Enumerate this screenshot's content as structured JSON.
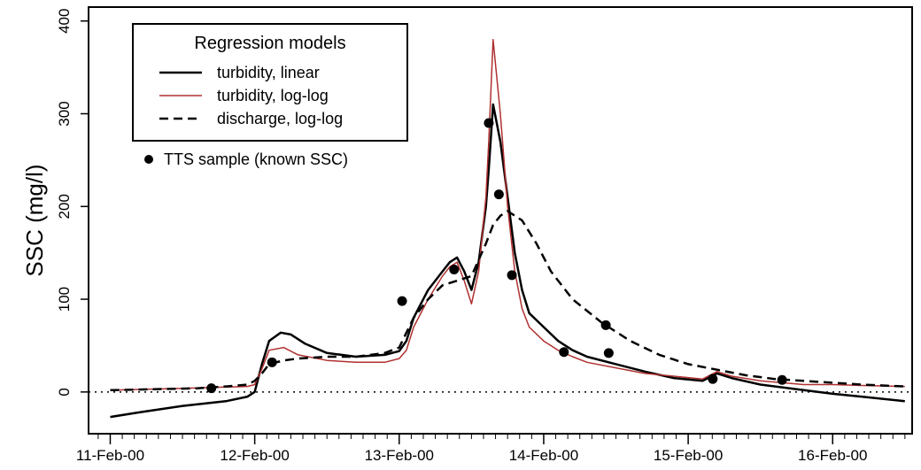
{
  "chart_data": {
    "type": "line",
    "title": "",
    "xlabel": "",
    "ylabel": "SSC (mg/l)",
    "x_ticklabels": [
      "11-Feb-00",
      "12-Feb-00",
      "13-Feb-00",
      "14-Feb-00",
      "15-Feb-00",
      "16-Feb-00"
    ],
    "x_tick_days": [
      11,
      12,
      13,
      14,
      15,
      16
    ],
    "xlim_days": [
      10.85,
      16.55
    ],
    "y_ticks": [
      0,
      100,
      200,
      300,
      400
    ],
    "ylim": [
      -45,
      415
    ],
    "legend": {
      "title": "Regression models",
      "position": "top-left",
      "entries": [
        "turbidity, linear",
        "turbidity, log-log",
        "discharge, log-log"
      ],
      "points_label": "TTS sample (known SSC)"
    },
    "reference_line": {
      "y": 0,
      "style": "dotted"
    },
    "colors": {
      "linear": "#000000",
      "loglog_turbidity": "#b03030",
      "discharge": "#000000",
      "points": "#000000"
    },
    "series": [
      {
        "name": "turbidity, linear",
        "style": "solid",
        "x": [
          11.0,
          11.2,
          11.5,
          11.8,
          11.95,
          12.0,
          12.05,
          12.1,
          12.18,
          12.25,
          12.35,
          12.5,
          12.7,
          12.9,
          13.0,
          13.05,
          13.1,
          13.2,
          13.3,
          13.35,
          13.4,
          13.45,
          13.5,
          13.55,
          13.6,
          13.62,
          13.65,
          13.7,
          13.75,
          13.8,
          13.85,
          13.9,
          14.0,
          14.1,
          14.2,
          14.3,
          14.5,
          14.7,
          14.9,
          15.1,
          15.2,
          15.3,
          15.5,
          15.8,
          16.0,
          16.2,
          16.5
        ],
        "y": [
          -27,
          -22,
          -15,
          -10,
          -5,
          0,
          30,
          55,
          64,
          62,
          52,
          42,
          38,
          40,
          44,
          55,
          80,
          110,
          130,
          140,
          145,
          130,
          110,
          140,
          200,
          240,
          310,
          270,
          210,
          150,
          110,
          85,
          70,
          55,
          45,
          38,
          30,
          22,
          15,
          12,
          20,
          15,
          8,
          2,
          -2,
          -5,
          -10
        ]
      },
      {
        "name": "turbidity, log-log",
        "style": "solid",
        "x": [
          11.0,
          11.5,
          11.95,
          12.0,
          12.05,
          12.1,
          12.2,
          12.3,
          12.5,
          12.7,
          12.9,
          13.0,
          13.05,
          13.1,
          13.2,
          13.3,
          13.35,
          13.4,
          13.45,
          13.5,
          13.55,
          13.6,
          13.62,
          13.65,
          13.7,
          13.75,
          13.8,
          13.85,
          13.9,
          14.0,
          14.1,
          14.2,
          14.3,
          14.5,
          14.7,
          14.9,
          15.1,
          15.2,
          15.3,
          15.5,
          15.8,
          16.0,
          16.2,
          16.5
        ],
        "y": [
          2,
          4,
          6,
          8,
          25,
          45,
          48,
          40,
          34,
          32,
          32,
          36,
          45,
          70,
          100,
          125,
          135,
          140,
          120,
          95,
          130,
          210,
          270,
          380,
          300,
          200,
          130,
          90,
          70,
          55,
          45,
          38,
          32,
          26,
          20,
          17,
          14,
          22,
          17,
          12,
          8,
          8,
          7,
          6
        ]
      },
      {
        "name": "discharge, log-log",
        "style": "dashed",
        "x": [
          11.0,
          11.3,
          11.6,
          11.8,
          11.95,
          12.0,
          12.05,
          12.1,
          12.2,
          12.3,
          12.5,
          12.7,
          12.9,
          13.0,
          13.1,
          13.2,
          13.3,
          13.4,
          13.5,
          13.6,
          13.65,
          13.7,
          13.75,
          13.85,
          13.95,
          14.05,
          14.2,
          14.4,
          14.6,
          14.8,
          15.0,
          15.2,
          15.4,
          15.6,
          15.8,
          16.0,
          16.2,
          16.5
        ],
        "y": [
          2,
          3,
          4,
          6,
          8,
          12,
          20,
          30,
          34,
          36,
          38,
          38,
          42,
          48,
          80,
          100,
          115,
          120,
          125,
          160,
          180,
          190,
          195,
          185,
          160,
          130,
          100,
          75,
          55,
          40,
          30,
          24,
          18,
          14,
          12,
          10,
          8,
          6
        ]
      }
    ],
    "points": {
      "name": "TTS sample (known SSC)",
      "x": [
        11.7,
        12.12,
        13.02,
        13.38,
        13.62,
        13.69,
        13.78,
        14.14,
        14.43,
        14.45,
        15.17,
        15.65
      ],
      "y": [
        4,
        32,
        98,
        132,
        290,
        213,
        126,
        43,
        72,
        42,
        14,
        13
      ]
    }
  }
}
